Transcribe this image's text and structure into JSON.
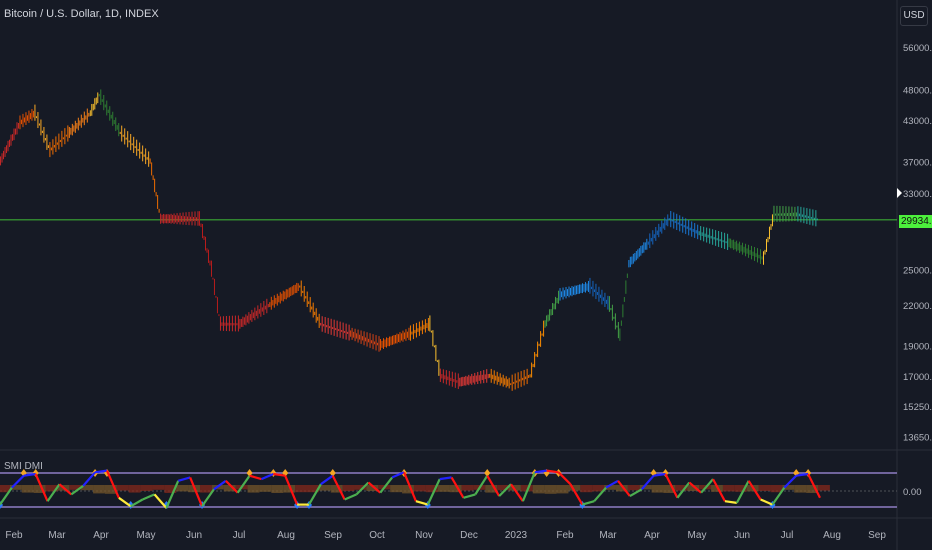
{
  "header": {
    "title": "Bitcoin / U.S. Dollar, 1D, INDEX",
    "currency": "USD"
  },
  "indicator": {
    "label": "SMI DMI",
    "zero_label": "0.00"
  },
  "colors": {
    "background": "#161a25",
    "grid": "#2a2e39",
    "last_price_line": "#4cf03c",
    "band": "#8e7cc3"
  },
  "chart_data": [
    {
      "type": "line",
      "title": "Bitcoin / U.S. Dollar, 1D, INDEX",
      "yscale": "log",
      "ylim": [
        13000,
        62000
      ],
      "grid": false,
      "y_ticks": [
        "56000.00",
        "48000.00",
        "43000.00",
        "37000.00",
        "33000.00",
        "25000.00",
        "22000.00",
        "19000.00",
        "17000.00",
        "15250.00",
        "13650.00"
      ],
      "x_ticks": [
        "Feb",
        "Mar",
        "Apr",
        "May",
        "Jun",
        "Jul",
        "Aug",
        "Sep",
        "Oct",
        "Nov",
        "Dec",
        "2023",
        "Feb",
        "Mar",
        "Apr",
        "May",
        "Jun",
        "Jul",
        "Aug",
        "Sep"
      ],
      "last_price": "29934.92",
      "series": [
        {
          "x": [
            "2022-01-23",
            "2022-02-05",
            "2022-02-15",
            "2022-02-25",
            "2022-03-10",
            "2022-03-24",
            "2022-03-30",
            "2022-04-13",
            "2022-05-03",
            "2022-05-10",
            "2022-06-05",
            "2022-06-13",
            "2022-06-19",
            "2022-07-02",
            "2022-07-22",
            "2022-08-11",
            "2022-08-25",
            "2022-09-14",
            "2022-10-04",
            "2022-10-24",
            "2022-11-06",
            "2022-11-13",
            "2022-11-26",
            "2022-12-16",
            "2022-12-30",
            "2023-01-12",
            "2023-01-22",
            "2023-02-01",
            "2023-02-21",
            "2023-03-06",
            "2023-03-13",
            "2023-03-19",
            "2023-04-01",
            "2023-04-15",
            "2023-05-05",
            "2023-05-25",
            "2023-06-17",
            "2023-06-24",
            "2023-07-10",
            "2023-07-24"
          ],
          "y": [
            37000,
            42500,
            44000,
            38500,
            41000,
            44000,
            47000,
            41000,
            37000,
            30000,
            30000,
            25000,
            20500,
            20500,
            22000,
            23500,
            20500,
            19800,
            19000,
            19800,
            20500,
            17000,
            16600,
            17000,
            16500,
            17000,
            20500,
            22800,
            23500,
            22000,
            19700,
            25500,
            27500,
            30000,
            28500,
            27500,
            26000,
            30500,
            30500,
            29934.92
          ],
          "colors": [
            "#c62828",
            "#e65100",
            "#f9a825",
            "#ef6c00",
            "#f57f17",
            "#fbc02d",
            "#2e7d32",
            "#f9a825",
            "#ef6c00",
            "#c62828",
            "#b71c1c",
            "#b71c1c",
            "#c62828",
            "#c62828",
            "#e65100",
            "#f57c00",
            "#e53935",
            "#d84315",
            "#e65100",
            "#f57c00",
            "#fbc02d",
            "#c62828",
            "#e53935",
            "#f57c00",
            "#ef6c00",
            "#fb8c00",
            "#43a047",
            "#1e88e5",
            "#1565c0",
            "#43a047",
            "#2e7d32",
            "#1e88e5",
            "#1565c0",
            "#1976d2",
            "#26a69a",
            "#2e7d32",
            "#fbc02d",
            "#43a047",
            "#26a69a",
            "#26c6da"
          ]
        }
      ]
    },
    {
      "type": "line",
      "title": "SMI DMI",
      "zero": "0.00",
      "series": [
        {
          "values": [
            -40,
            10,
            45,
            50,
            -30,
            20,
            -10,
            15,
            55,
            60,
            -20,
            -45,
            -25,
            -10,
            -50,
            30,
            40,
            -45,
            5,
            30,
            -5,
            45,
            35,
            50,
            45,
            -40,
            -40,
            20,
            45,
            -25,
            -10,
            25,
            -5,
            40,
            55,
            -30,
            -40,
            35,
            40,
            -20,
            -10,
            45,
            -15,
            20,
            -30,
            55,
            60,
            55,
            20,
            -40,
            -30,
            10,
            30,
            -15,
            5,
            45,
            50,
            -20,
            25,
            -5,
            35,
            -30,
            -35,
            30,
            -25,
            -40,
            10,
            45,
            50,
            -20
          ]
        }
      ]
    }
  ]
}
